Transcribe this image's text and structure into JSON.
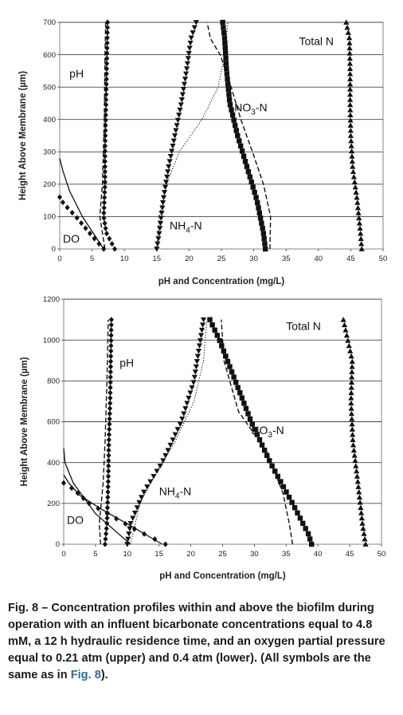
{
  "chart_data": [
    {
      "type": "line",
      "label": "upper",
      "xlabel": "pH and Concentration (mg/L)",
      "ylabel": "Height Above Membrane (µm)",
      "xlim": [
        0,
        50
      ],
      "ylim": [
        0,
        700
      ],
      "xticks": [
        0,
        5,
        10,
        15,
        20,
        25,
        30,
        35,
        40,
        45,
        50
      ],
      "yticks": [
        0,
        100,
        200,
        300,
        400,
        500,
        600,
        700
      ],
      "grid": "horizontal",
      "annotations": [
        {
          "text": "Total N",
          "x": 37,
          "y": 630
        },
        {
          "text": "pH",
          "x": 1.5,
          "y": 530
        },
        {
          "text": "NO3-N",
          "x": 27,
          "y": 425
        },
        {
          "text": "NH4-N",
          "x": 17,
          "y": 60
        },
        {
          "text": "DO",
          "x": 0.5,
          "y": 20
        }
      ],
      "series": [
        {
          "key": "pH",
          "marker": "diamond",
          "x": [
            8.5,
            7.2,
            6.8,
            7.0,
            7.0,
            7.1,
            7.2,
            7.3,
            7.4
          ],
          "y": [
            0,
            50,
            100,
            200,
            300,
            400,
            500,
            600,
            700
          ]
        },
        {
          "key": "DO",
          "marker": "diamond",
          "x": [
            6.8,
            5.0,
            2.5,
            0.6,
            0.0
          ],
          "y": [
            0,
            40,
            100,
            140,
            160
          ]
        },
        {
          "key": "DO-model",
          "marker": "none",
          "style": "solid",
          "x": [
            6.8,
            3.5,
            1.5,
            0.5,
            0
          ],
          "y": [
            0,
            100,
            180,
            240,
            280
          ]
        },
        {
          "key": "pH-model",
          "marker": "none",
          "style": "dashed",
          "x": [
            7.0,
            6.2,
            6.6,
            6.9,
            7.0,
            7.1
          ],
          "y": [
            0,
            100,
            200,
            400,
            600,
            700
          ]
        },
        {
          "key": "NH4-N",
          "marker": "triangle-down",
          "x": [
            15.0,
            15.4,
            16.0,
            16.8,
            17.8,
            18.8,
            19.6,
            20.3,
            21.1
          ],
          "y": [
            0,
            50,
            150,
            250,
            350,
            450,
            550,
            650,
            700
          ]
        },
        {
          "key": "NH4-N-model",
          "marker": "none",
          "style": "dotted",
          "x": [
            15,
            15.4,
            16.5,
            18.5,
            22,
            24.5,
            25.5,
            26
          ],
          "y": [
            0,
            100,
            200,
            300,
            400,
            500,
            600,
            700
          ]
        },
        {
          "key": "NO3-N",
          "marker": "square",
          "x": [
            31.8,
            31.5,
            30.5,
            29.0,
            27.5,
            26.3,
            25.8,
            25.5,
            25.2
          ],
          "y": [
            0,
            50,
            150,
            250,
            350,
            450,
            550,
            650,
            700
          ]
        },
        {
          "key": "NO3-N-model",
          "marker": "none",
          "style": "dashed",
          "x": [
            32.5,
            32.6,
            31.5,
            29.8,
            28.0,
            26.5,
            24.8,
            23.3,
            22.8
          ],
          "y": [
            0,
            100,
            200,
            300,
            400,
            500,
            600,
            650,
            700
          ]
        },
        {
          "key": "Total N",
          "marker": "triangle-up",
          "x": [
            46.7,
            46.5,
            46.0,
            45.3,
            45.0,
            44.9,
            44.9,
            44.8,
            44.3
          ],
          "y": [
            0,
            50,
            150,
            250,
            350,
            450,
            550,
            650,
            700
          ]
        }
      ]
    },
    {
      "type": "line",
      "label": "lower",
      "xlabel": "pH and Concentration (mg/L)",
      "ylabel": "Height Above Membrane (µm)",
      "xlim": [
        0,
        50
      ],
      "ylim": [
        0,
        1200
      ],
      "xticks": [
        0,
        5,
        10,
        15,
        20,
        25,
        30,
        35,
        40,
        45,
        50
      ],
      "yticks": [
        0,
        200,
        400,
        600,
        800,
        1000,
        1200
      ],
      "grid": "horizontal",
      "annotations": [
        {
          "text": "Total N",
          "x": 35,
          "y": 1050
        },
        {
          "text": "pH",
          "x": 8.8,
          "y": 870
        },
        {
          "text": "NO3-N",
          "x": 29.5,
          "y": 540
        },
        {
          "text": "NH4-N",
          "x": 15,
          "y": 240
        },
        {
          "text": "DO",
          "x": 0.5,
          "y": 100
        }
      ],
      "series": [
        {
          "key": "pH",
          "marker": "diamond",
          "x": [
            6.5,
            6.8,
            7.0,
            7.1,
            7.3,
            7.4,
            7.5
          ],
          "y": [
            0,
            100,
            300,
            500,
            700,
            900,
            1100
          ]
        },
        {
          "key": "DO",
          "marker": "diamond",
          "x": [
            16.0,
            12.0,
            8.0,
            4.0,
            1.5,
            0.0
          ],
          "y": [
            0,
            60,
            130,
            200,
            270,
            300
          ]
        },
        {
          "key": "DO-model",
          "marker": "none",
          "style": "solid",
          "x": [
            15.5,
            10,
            6,
            2.5,
            0.8,
            0.0
          ],
          "y": [
            0,
            100,
            170,
            240,
            300,
            340
          ]
        },
        {
          "key": "DO-model-2",
          "marker": "none",
          "style": "solid",
          "x": [
            10.5,
            5,
            1.5,
            0.2,
            0
          ],
          "y": [
            0,
            150,
            300,
            400,
            470
          ]
        },
        {
          "key": "pH-model",
          "marker": "none",
          "style": "dashed",
          "x": [
            5.8,
            5.6,
            6.2,
            6.5,
            6.8,
            7.0
          ],
          "y": [
            0,
            100,
            300,
            500,
            800,
            1100
          ]
        },
        {
          "key": "NH4-N",
          "marker": "triangle-down",
          "x": [
            10.0,
            10.5,
            12.5,
            15.5,
            18.5,
            20.5,
            21.5,
            22.0
          ],
          "y": [
            0,
            100,
            250,
            400,
            600,
            800,
            1000,
            1100
          ]
        },
        {
          "key": "NH4-N-model",
          "marker": "none",
          "style": "dotted",
          "x": [
            10.5,
            12,
            14.5,
            17.5,
            20.5,
            22,
            22.5
          ],
          "y": [
            0,
            200,
            350,
            500,
            700,
            900,
            1100
          ]
        },
        {
          "key": "NO3-N",
          "marker": "square",
          "x": [
            39.0,
            38.5,
            36.0,
            32.5,
            29.5,
            27.0,
            24.5,
            23.0
          ],
          "y": [
            0,
            50,
            200,
            400,
            600,
            800,
            1000,
            1100
          ]
        },
        {
          "key": "NO3-N-model",
          "marker": "none",
          "style": "dashed",
          "x": [
            36.0,
            35.5,
            34.5,
            32.0,
            27.5,
            25.2,
            24.8
          ],
          "y": [
            0,
            100,
            250,
            450,
            650,
            900,
            1100
          ]
        },
        {
          "key": "Total N",
          "marker": "triangle-up",
          "x": [
            47.5,
            47.0,
            46.3,
            45.5,
            45.2,
            45.4,
            44.0
          ],
          "y": [
            0,
            100,
            300,
            500,
            700,
            900,
            1100
          ]
        }
      ]
    }
  ],
  "caption": {
    "fig_label": "Fig. 8",
    "dash": " – ",
    "text": "Concentration profiles within and above the biofilm during operation with an influent bicarbonate concentrations equal to 4.8 mM, a 12 h hydraulic residence time, and an oxygen partial pressure equal to 0.21 atm (upper) and 0.4 atm (lower). (All symbols are the same as in ",
    "link_text": "Fig. 8",
    "end": ")."
  }
}
